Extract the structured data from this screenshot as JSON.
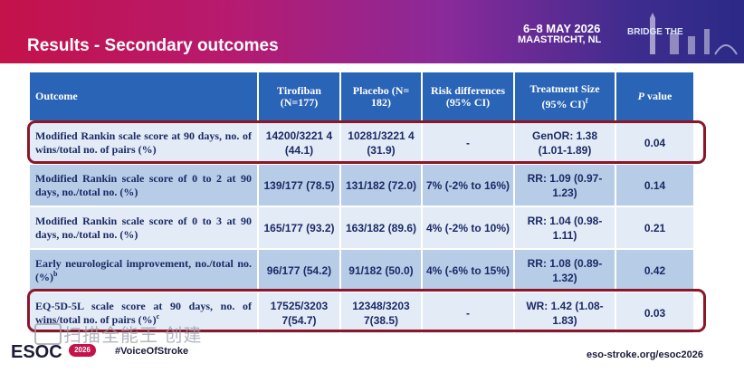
{
  "header": {
    "title": "Results - Secondary outcomes",
    "event_date": "6–8 MAY 2026",
    "event_place": "MAASTRICHT, NL",
    "bridge_logo": "BRIDGE THE"
  },
  "colors": {
    "banner_start": "#c4124a",
    "banner_end": "#2b2a86",
    "table_header": "#2a64b7",
    "row_dark": "#b7cce7",
    "row_light": "#e3ebf6",
    "highlight_border": "#8b1628",
    "text": "#1b2a66"
  },
  "table": {
    "headers": {
      "outcome": "Outcome",
      "tirofiban": "Tirofiban (N=177)",
      "placebo": "Placebo (N= 182)",
      "risk": "Risk differences (95% CI)",
      "treatment_size": "Treatment Size (95% CI)",
      "treatment_size_sup": "f",
      "p_italic": "P",
      "p_rest": " value"
    },
    "rows": [
      {
        "outcome": "Modified Rankin scale score at 90 days, no. of wins/total no. of pairs (%)",
        "sup": "",
        "tirofiban": "14200/3221 4 (44.1)",
        "placebo": "10281/3221 4 (31.9)",
        "risk": "-",
        "treatment": "GenOR: 1.38 (1.01-1.89)",
        "p": "0.04"
      },
      {
        "outcome": "Modified Rankin scale score of 0 to 2 at 90 days, no./total no. (%)",
        "sup": "",
        "tirofiban": "139/177 (78.5)",
        "placebo": "131/182 (72.0)",
        "risk": "7% (-2% to 16%)",
        "treatment": "RR: 1.09 (0.97-1.23)",
        "p": "0.14"
      },
      {
        "outcome": "Modified Rankin scale score of 0 to 3 at 90 days, no./total no. (%)",
        "sup": "",
        "tirofiban": "165/177 (93.2)",
        "placebo": "163/182 (89.6)",
        "risk": "4% (-2% to 10%)",
        "treatment": "RR: 1.04 (0.98-1.11)",
        "p": "0.21"
      },
      {
        "outcome": "Early neurological improvement, no./total no. (%)",
        "sup": "b",
        "tirofiban": "96/177 (54.2)",
        "placebo": "91/182 (50.0)",
        "risk": "4% (-6% to 15%)",
        "treatment": "RR: 1.08 (0.89-1.32)",
        "p": "0.42"
      },
      {
        "outcome": "EQ-5D-5L scale score at 90 days, no. of wins/total no. of pairs (%)",
        "sup": "c",
        "tirofiban": "17525/3203 7(54.7)",
        "placebo": "12348/3203 7(38.5)",
        "risk": "-",
        "treatment": "WR: 1.42 (1.08-1.83)",
        "p": "0.03"
      }
    ]
  },
  "footer": {
    "logo": "ESOC",
    "logo_year": "2026",
    "hashtag": "#VoiceOfStroke",
    "url": "eso-stroke.org/esoc2026"
  },
  "watermark": {
    "text": "扫描全能王 创建",
    "icon": "camscanner-icon"
  }
}
